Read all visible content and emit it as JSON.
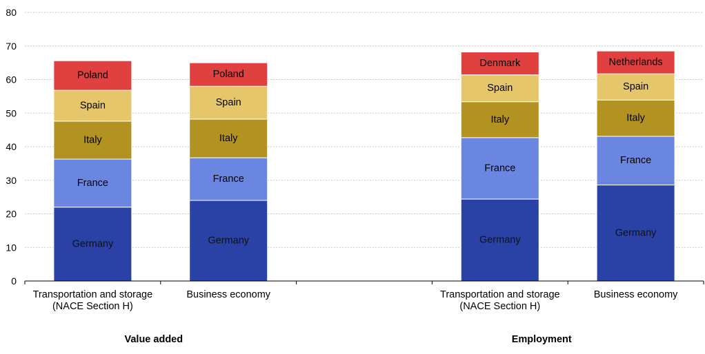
{
  "chart_data": {
    "type": "bar",
    "stacked": true,
    "ylim": [
      0,
      80
    ],
    "yticks": [
      0,
      10,
      20,
      30,
      40,
      50,
      60,
      70,
      80
    ],
    "grid": true,
    "legend": "none",
    "colors": {
      "Germany": "#2a42a6",
      "France": "#6a86e0",
      "Italy": "#b29220",
      "Spain": "#e5c66b",
      "Poland": "#e04040",
      "Denmark": "#e04040",
      "Netherlands": "#e04040"
    },
    "groups": [
      {
        "name": "Value added",
        "bars": [
          {
            "category": [
              "Transportation and storage",
              "(NACE Section H)"
            ],
            "segments": [
              {
                "label": "Germany",
                "value": 22.0
              },
              {
                "label": "France",
                "value": 14.3
              },
              {
                "label": "Italy",
                "value": 11.3
              },
              {
                "label": "Spain",
                "value": 9.2
              },
              {
                "label": "Poland",
                "value": 8.8
              }
            ]
          },
          {
            "category": [
              "Business economy"
            ],
            "segments": [
              {
                "label": "Germany",
                "value": 24.0
              },
              {
                "label": "France",
                "value": 12.7
              },
              {
                "label": "Italy",
                "value": 11.5
              },
              {
                "label": "Spain",
                "value": 9.8
              },
              {
                "label": "Poland",
                "value": 7.0
              }
            ]
          }
        ]
      },
      {
        "name": "Employment",
        "bars": [
          {
            "category": [
              "Transportation and storage",
              "(NACE Section H)"
            ],
            "segments": [
              {
                "label": "Germany",
                "value": 24.4
              },
              {
                "label": "France",
                "value": 18.3
              },
              {
                "label": "Italy",
                "value": 10.7
              },
              {
                "label": "Spain",
                "value": 8.0
              },
              {
                "label": "Denmark",
                "value": 6.8
              }
            ]
          },
          {
            "category": [
              "Business economy"
            ],
            "segments": [
              {
                "label": "Germany",
                "value": 28.6
              },
              {
                "label": "France",
                "value": 14.5
              },
              {
                "label": "Italy",
                "value": 10.8
              },
              {
                "label": "Spain",
                "value": 7.8
              },
              {
                "label": "Netherlands",
                "value": 6.8
              }
            ]
          }
        ]
      }
    ]
  }
}
